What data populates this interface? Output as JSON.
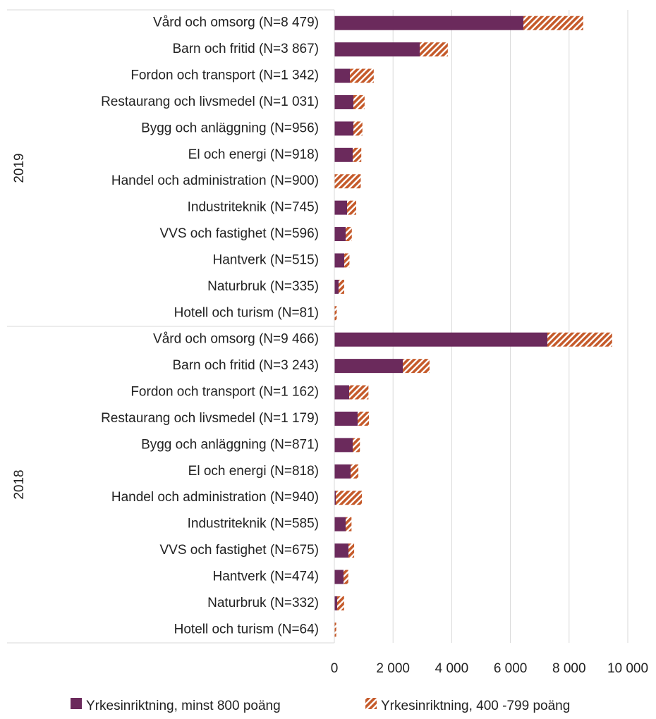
{
  "chart_data": {
    "type": "stacked-bar-horizontal",
    "groups": [
      "2019",
      "2018"
    ],
    "categories": [
      "Vård och omsorg (N=8 479)",
      "Barn och fritid (N=3 867)",
      "Fordon och transport (N=1 342)",
      "Restaurang och livsmedel (N=1 031)",
      "Bygg och anläggning (N=956)",
      "El och energi (N=918)",
      "Handel och administration (N=900)",
      "Industriteknik (N=745)",
      "VVS och fastighet (N=596)",
      "Hantverk (N=515)",
      "Naturbruk (N=335)",
      "Hotell och turism (N=81)",
      "Vård och omsorg (N=9 466)",
      "Barn och fritid (N=3 243)",
      "Fordon och transport (N=1 162)",
      "Restaurang och livsmedel (N=1 179)",
      "Bygg och anläggning (N=871)",
      "El och energi (N=818)",
      "Handel och administration (N=940)",
      "Industriteknik (N=585)",
      "VVS och fastighet (N=675)",
      "Hantverk (N=474)",
      "Naturbruk (N=332)",
      "Hotell och turism (N=64)"
    ],
    "series": [
      {
        "name": "Yrkesinriktning, minst 800 poäng",
        "color": "#6b2a5c",
        "pattern": "solid",
        "values": [
          6442,
          2909,
          529,
          649,
          649,
          625,
          0,
          433,
          385,
          337,
          144,
          0,
          7260,
          2332,
          505,
          793,
          625,
          553,
          48,
          385,
          481,
          313,
          96,
          0
        ]
      },
      {
        "name": "Yrkesinriktning, 400 -799 poäng",
        "color": "#c55a2a",
        "pattern": "hatch",
        "values": [
          2037,
          958,
          813,
          382,
          307,
          293,
          900,
          312,
          211,
          178,
          191,
          81,
          2206,
          911,
          657,
          386,
          246,
          265,
          892,
          200,
          194,
          161,
          236,
          64
        ]
      }
    ],
    "xlim": [
      0,
      10000
    ],
    "xticks": [
      0,
      {
        "value": 2000,
        "label": "2 000"
      },
      {
        "value": 4000,
        "label": "4 000"
      },
      {
        "value": 6000,
        "label": "6 000"
      },
      {
        "value": 8000,
        "label": "8 000"
      },
      {
        "value": 10000,
        "label": "10 000"
      }
    ],
    "grid": true,
    "legend": "bottom"
  }
}
